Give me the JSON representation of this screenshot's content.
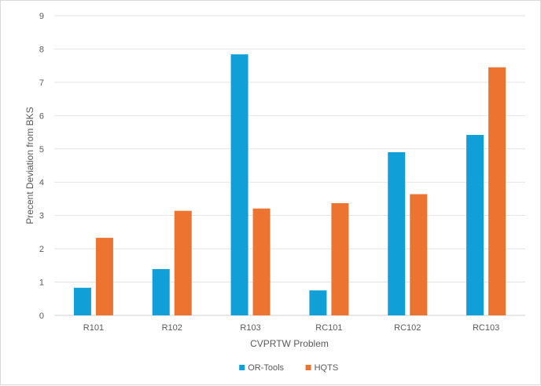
{
  "chart_data": {
    "type": "bar",
    "title": "",
    "xlabel": "CVPRTW Problem",
    "ylabel": "Precent Deviation from BKS",
    "categories": [
      "R101",
      "R102",
      "R103",
      "RC101",
      "RC102",
      "RC103"
    ],
    "series": [
      {
        "name": "OR-Tools",
        "color": "#109fd7",
        "values": [
          0.83,
          1.39,
          7.84,
          0.75,
          4.9,
          5.42
        ]
      },
      {
        "name": "HQTS",
        "color": "#ed7330",
        "values": [
          2.33,
          3.14,
          3.21,
          3.37,
          3.64,
          7.45
        ]
      }
    ],
    "ylim": [
      0,
      9
    ],
    "yticks": [
      0,
      1,
      2,
      3,
      4,
      5,
      6,
      7,
      8,
      9
    ],
    "grid": true,
    "legend_position": "bottom"
  }
}
